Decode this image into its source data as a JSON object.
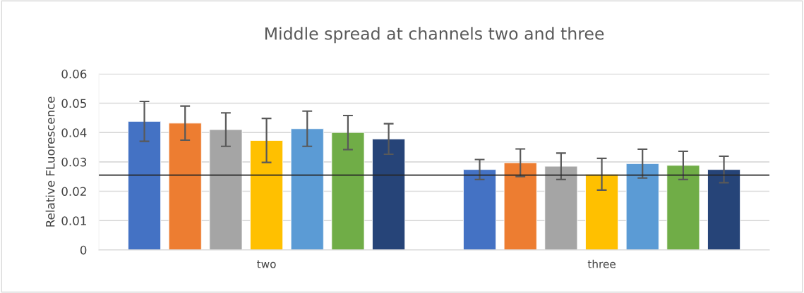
{
  "chart_data": {
    "type": "bar",
    "title": "Middle spread at channels two and three",
    "ylabel": "Relative FLuorescence",
    "categories": [
      "two",
      "three"
    ],
    "series": [
      {
        "color": "#4472c4",
        "values": [
          0.0438,
          0.0274
        ],
        "errors": [
          0.0068,
          0.0034
        ]
      },
      {
        "color": "#ed7d31",
        "values": [
          0.0432,
          0.0297
        ],
        "errors": [
          0.0058,
          0.0047
        ]
      },
      {
        "color": "#a5a5a5",
        "values": [
          0.041,
          0.0285
        ],
        "errors": [
          0.0057,
          0.0045
        ]
      },
      {
        "color": "#ffc000",
        "values": [
          0.0373,
          0.0258
        ],
        "errors": [
          0.0075,
          0.0054
        ]
      },
      {
        "color": "#5b9bd5",
        "values": [
          0.0413,
          0.0294
        ],
        "errors": [
          0.006,
          0.0049
        ]
      },
      {
        "color": "#70ad47",
        "values": [
          0.04,
          0.0288
        ],
        "errors": [
          0.0058,
          0.0048
        ]
      },
      {
        "color": "#264478",
        "values": [
          0.0378,
          0.0274
        ],
        "errors": [
          0.0052,
          0.0045
        ]
      }
    ],
    "ylim": [
      0,
      0.06
    ],
    "yticks": [
      {
        "value": 0,
        "label": "0"
      },
      0.01,
      0.02,
      0.03,
      0.04,
      0.05,
      0.06
    ],
    "grid": "y",
    "legend": false,
    "ref_lines": [
      {
        "axis": "y",
        "value": 0.0255,
        "color": "#262626"
      }
    ]
  }
}
